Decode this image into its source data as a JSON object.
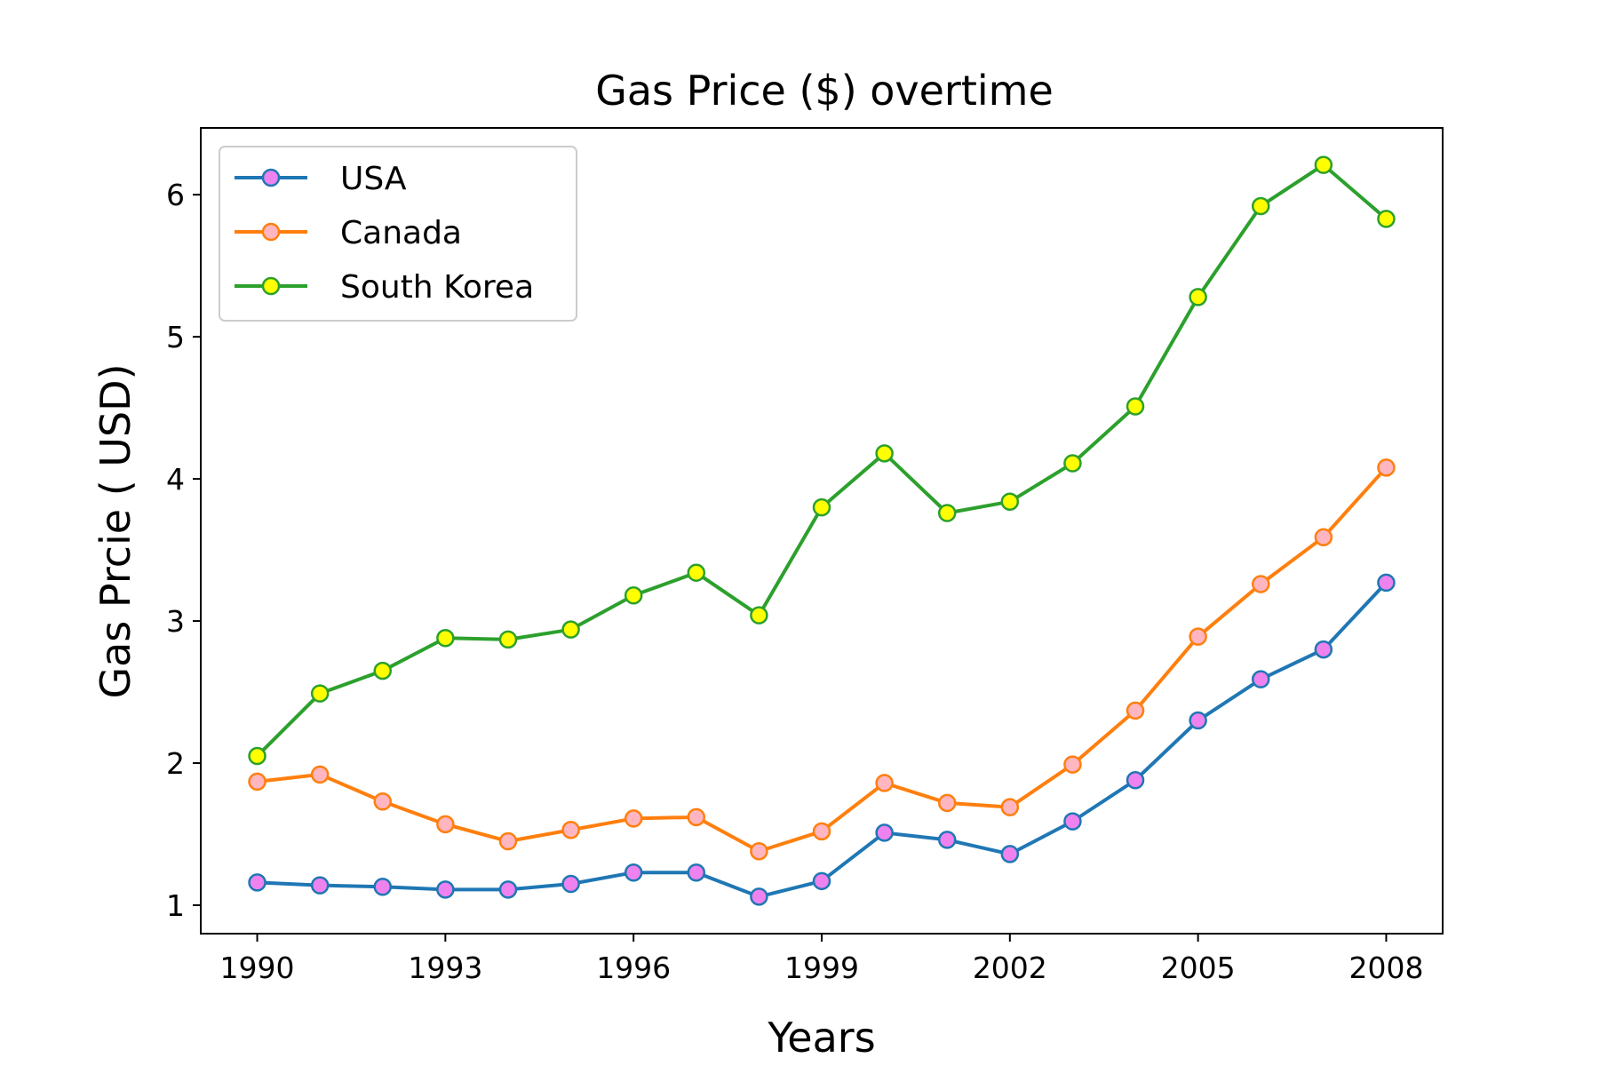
{
  "chart_data": {
    "type": "line",
    "title": "Gas Price ($) overtime",
    "xlabel": "Years",
    "ylabel": "Gas Prcie ( USD)",
    "x": [
      1990,
      1991,
      1992,
      1993,
      1994,
      1995,
      1996,
      1997,
      1998,
      1999,
      2000,
      2001,
      2002,
      2003,
      2004,
      2005,
      2006,
      2007,
      2008
    ],
    "xticks": [
      1990,
      1993,
      1996,
      1999,
      2002,
      2005,
      2008
    ],
    "yticks": [
      1,
      2,
      3,
      4,
      5,
      6
    ],
    "xlim": [
      1989.1,
      2008.9
    ],
    "ylim": [
      0.8,
      6.47
    ],
    "grid": false,
    "legend_position": "upper-left",
    "series": [
      {
        "name": "USA",
        "color": "#1f77b4",
        "marker_fill": "#ee82ee",
        "values": [
          1.16,
          1.14,
          1.13,
          1.11,
          1.11,
          1.15,
          1.23,
          1.23,
          1.06,
          1.17,
          1.51,
          1.46,
          1.36,
          1.59,
          1.88,
          2.3,
          2.59,
          2.8,
          3.27
        ]
      },
      {
        "name": "Canada",
        "color": "#ff7f0e",
        "marker_fill": "#ffb6c1",
        "values": [
          1.87,
          1.92,
          1.73,
          1.57,
          1.45,
          1.53,
          1.61,
          1.62,
          1.38,
          1.52,
          1.86,
          1.72,
          1.69,
          1.99,
          2.37,
          2.89,
          3.26,
          3.59,
          4.08
        ]
      },
      {
        "name": "South Korea",
        "color": "#2ca02c",
        "marker_fill": "#ffff00",
        "values": [
          2.05,
          2.49,
          2.65,
          2.88,
          2.87,
          2.94,
          3.18,
          3.34,
          3.04,
          3.8,
          4.18,
          3.76,
          3.84,
          4.11,
          4.51,
          5.28,
          5.92,
          6.21,
          5.83
        ]
      }
    ]
  }
}
